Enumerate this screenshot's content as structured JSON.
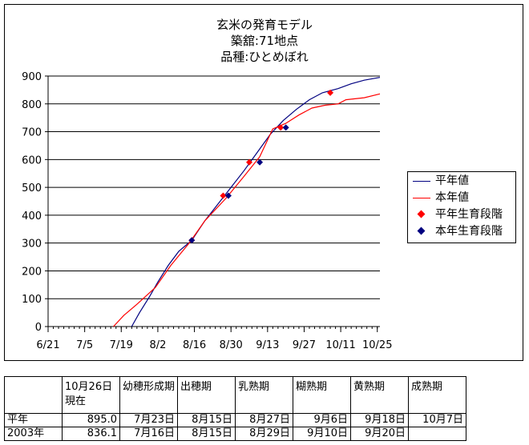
{
  "chart_data": {
    "type": "line",
    "title": [
      "玄米の発育モデル",
      "築舘:71地点",
      "品種:ひとめぼれ"
    ],
    "x_tick_labels": [
      "6/21",
      "7/5",
      "7/19",
      "8/2",
      "8/16",
      "8/30",
      "9/13",
      "9/27",
      "10/11",
      "10/25"
    ],
    "y_tick_labels": [
      "0",
      "100",
      "200",
      "300",
      "400",
      "500",
      "600",
      "700",
      "800",
      "900"
    ],
    "xlim": [
      "6/21",
      "10/26"
    ],
    "ylim": [
      0,
      900
    ],
    "grid": "horizontal",
    "legend_position": "right",
    "series": [
      {
        "name": "平年値",
        "color": "#000080",
        "points": [
          [
            "7/23",
            0
          ],
          [
            "7/26",
            50
          ],
          [
            "7/30",
            110
          ],
          [
            "8/2",
            160
          ],
          [
            "8/6",
            220
          ],
          [
            "8/10",
            270
          ],
          [
            "8/15",
            310
          ],
          [
            "8/20",
            380
          ],
          [
            "8/25",
            440
          ],
          [
            "8/30",
            500
          ],
          [
            "9/4",
            560
          ],
          [
            "9/9",
            625
          ],
          [
            "9/14",
            690
          ],
          [
            "9/19",
            740
          ],
          [
            "9/24",
            780
          ],
          [
            "9/29",
            815
          ],
          [
            "10/4",
            840
          ],
          [
            "10/10",
            855
          ],
          [
            "10/15",
            872
          ],
          [
            "10/20",
            885
          ],
          [
            "10/26",
            895
          ]
        ]
      },
      {
        "name": "本年値",
        "color": "#ff0000",
        "points": [
          [
            "7/16",
            0
          ],
          [
            "7/20",
            40
          ],
          [
            "7/25",
            80
          ],
          [
            "8/1",
            140
          ],
          [
            "8/7",
            220
          ],
          [
            "8/14",
            300
          ],
          [
            "8/20",
            380
          ],
          [
            "8/28",
            460
          ],
          [
            "9/4",
            540
          ],
          [
            "9/10",
            610
          ],
          [
            "9/15",
            710
          ],
          [
            "9/20",
            730
          ],
          [
            "9/25",
            760
          ],
          [
            "9/30",
            785
          ],
          [
            "10/5",
            795
          ],
          [
            "10/10",
            800
          ],
          [
            "10/13",
            815
          ],
          [
            "10/20",
            822
          ],
          [
            "10/26",
            836
          ]
        ]
      },
      {
        "name": "平年生育段階",
        "color": "#ff0000",
        "marker": "diamond",
        "points": [
          [
            "8/15",
            310
          ],
          [
            "8/27",
            470
          ],
          [
            "9/6",
            590
          ],
          [
            "9/18",
            715
          ],
          [
            "10/7",
            840
          ]
        ]
      },
      {
        "name": "本年生育段階",
        "color": "#000080",
        "marker": "diamond",
        "points": [
          [
            "8/15",
            310
          ],
          [
            "8/29",
            470
          ],
          [
            "9/10",
            590
          ],
          [
            "9/20",
            715
          ]
        ]
      }
    ]
  },
  "table": {
    "header": [
      "",
      "10月26日現在",
      "幼穂形成期",
      "出穂期",
      "乳熟期",
      "糊熟期",
      "黄熟期",
      "成熟期"
    ],
    "rows": [
      [
        "平年",
        "895.0",
        "7月23日",
        "8月15日",
        "8月27日",
        "9月6日",
        "9月18日",
        "10月7日"
      ],
      [
        "2003年",
        "836.1",
        "7月16日",
        "8月15日",
        "8月29日",
        "9月10日",
        "9月20日",
        ""
      ]
    ]
  }
}
